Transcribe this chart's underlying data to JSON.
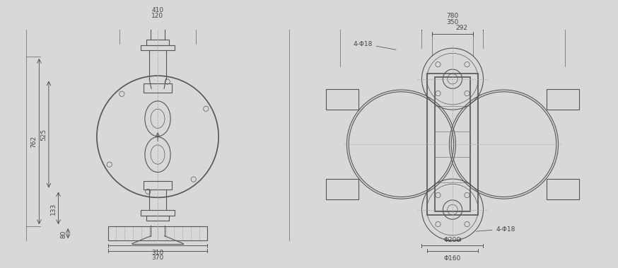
{
  "bg_color": "#d8d8d8",
  "line_color": "#555555",
  "dim_color": "#444444",
  "line_width": 0.8,
  "thick_line": 1.2,
  "thin_line": 0.5,
  "center_line_color": "#888888",
  "annotations": {
    "left_view": {
      "dim_410": "410",
      "dim_120": "120",
      "dim_762": "762",
      "dim_525": "525",
      "dim_133": "133",
      "dim_80": "80",
      "dim_310": "310",
      "dim_370": "370"
    },
    "right_view": {
      "dim_phi200": "Φ200",
      "dim_phi160": "Φ160",
      "dim_4phi18": "4-Φ18",
      "dim_292": "292",
      "dim_350": "350",
      "dim_780": "780",
      "dim_4phi18_bot": "4-Φ18"
    }
  }
}
